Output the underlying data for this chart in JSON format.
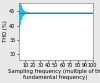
{
  "title": "",
  "xlabel": "Sampling frequency (multiple of the\nfundamental frequency)",
  "ylabel": "THD (%)",
  "xlim": [
    1,
    100
  ],
  "ylim": [
    28,
    48
  ],
  "yticks": [
    30,
    35,
    40,
    45
  ],
  "xticks": [
    10,
    20,
    30,
    40,
    50,
    60,
    70,
    80,
    90,
    100
  ],
  "convergence_value": 44.5,
  "line_color": "#00ccee",
  "hline_color": "#5566aa",
  "xlabel_fontsize": 3.8,
  "ylabel_fontsize": 3.8,
  "tick_fontsize": 3.5,
  "background_color": "#ffffff",
  "figure_facecolor": "#e8e8e8"
}
